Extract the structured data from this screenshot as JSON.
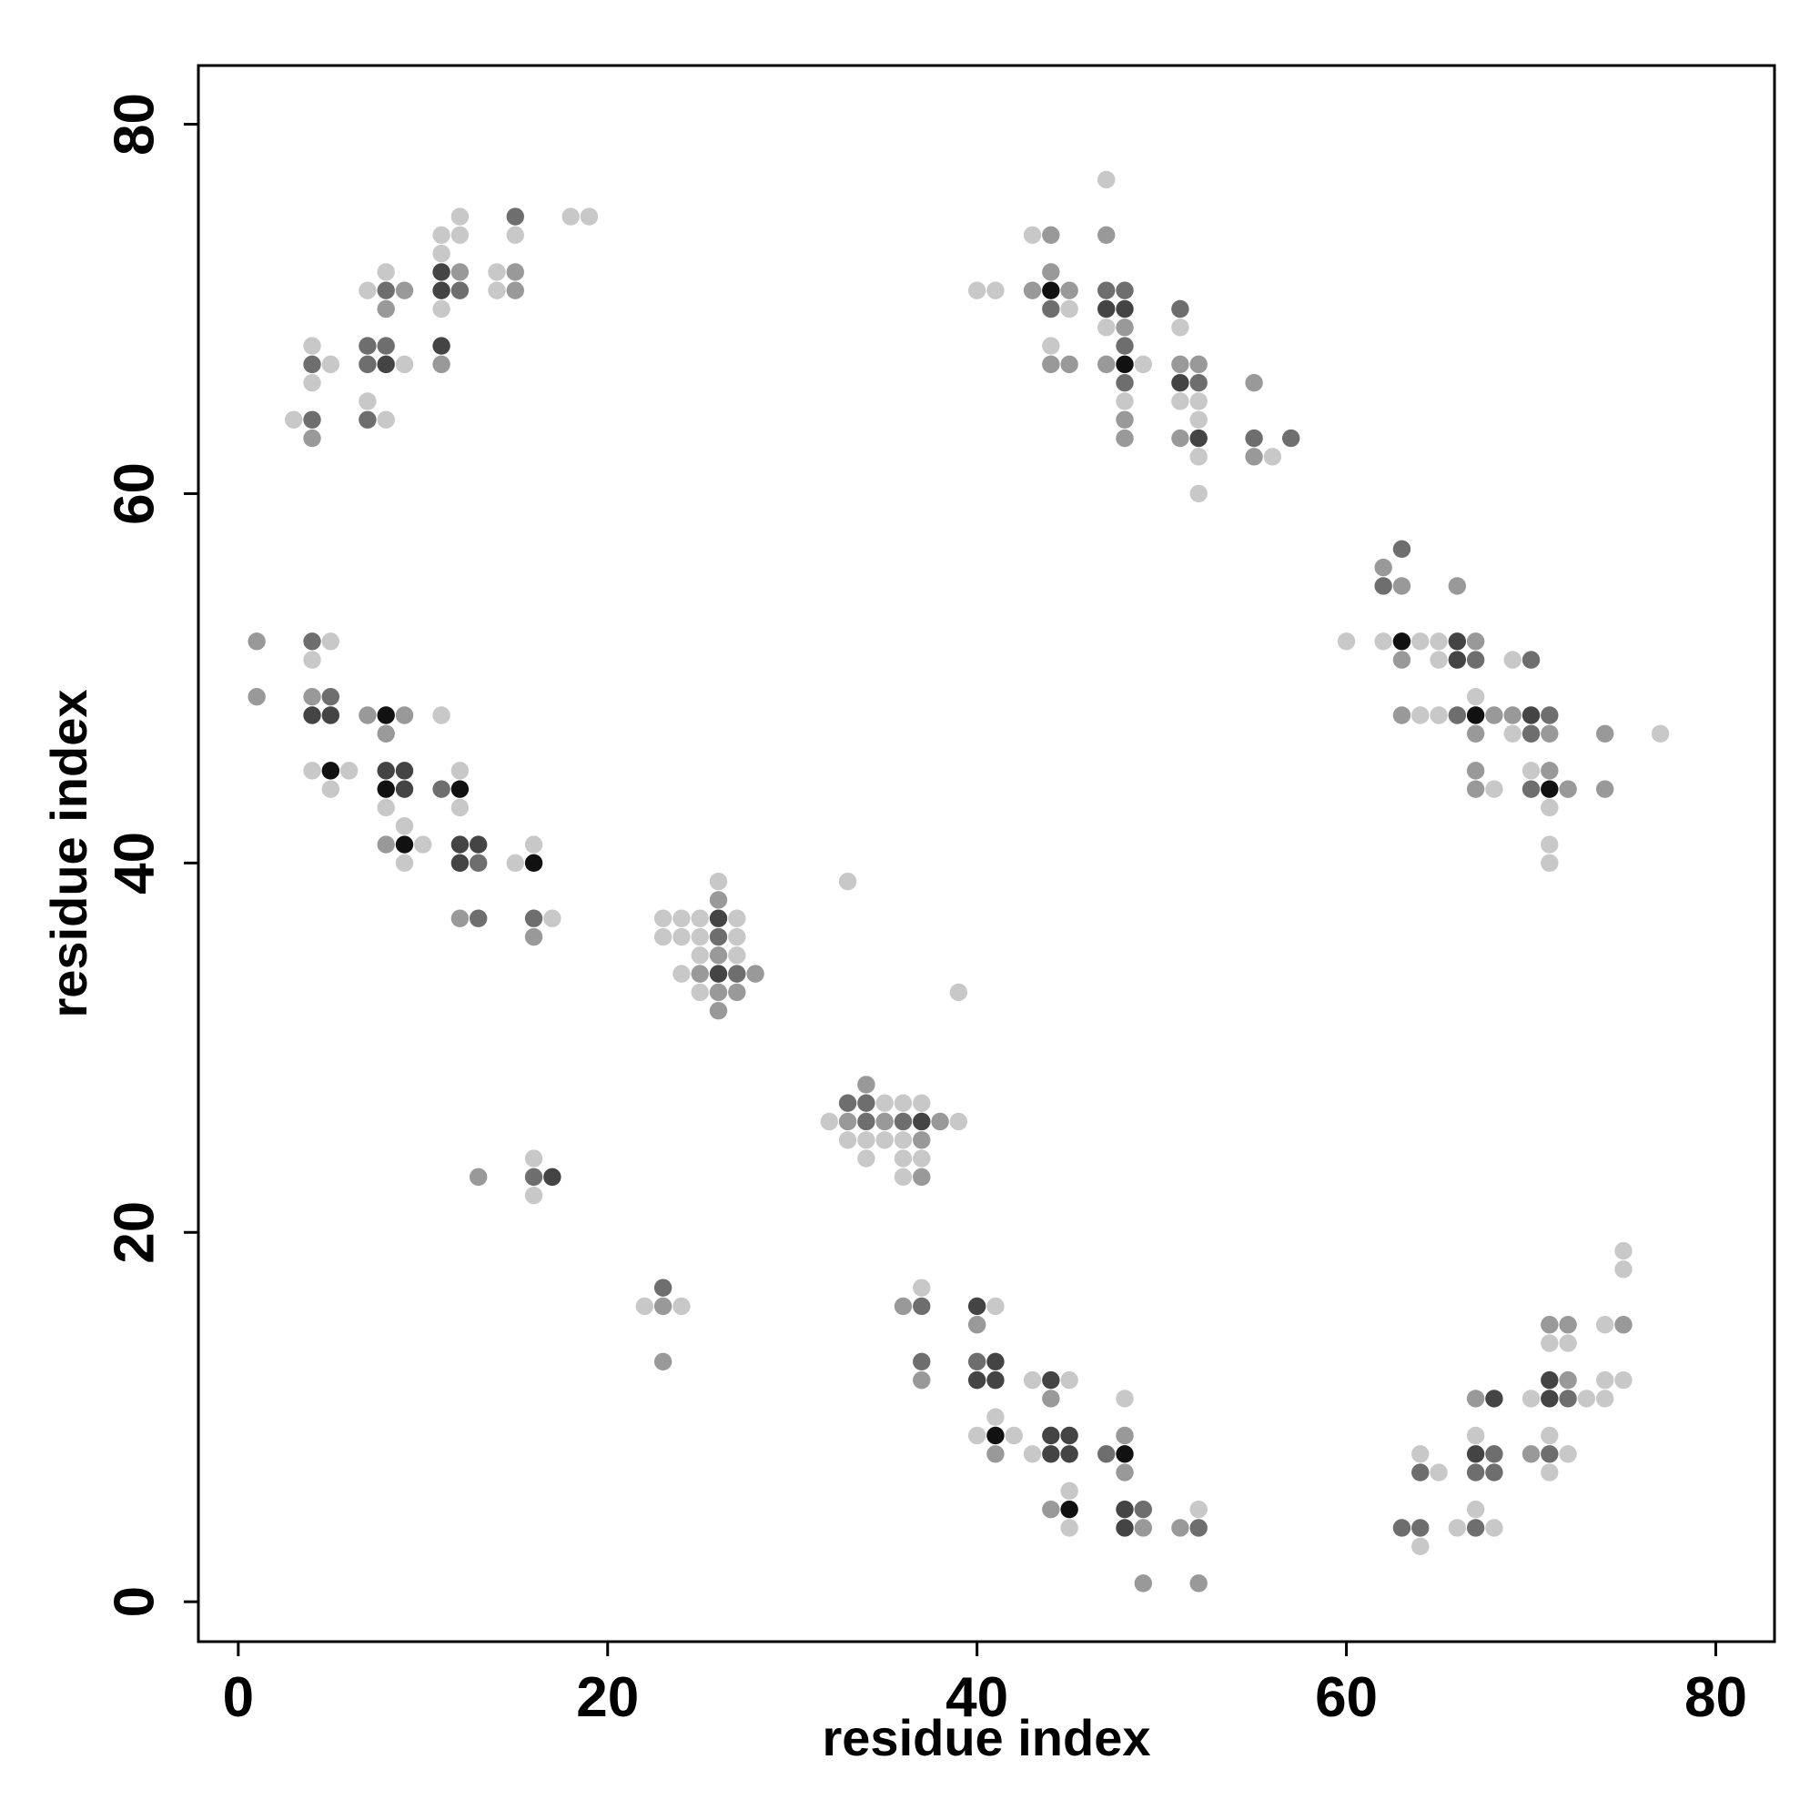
{
  "chart_data": {
    "type": "scatter",
    "xlabel": "residue index",
    "ylabel": "residue index",
    "xlim": [
      -2.16,
      83.18
    ],
    "ylim": [
      -2.16,
      83.18
    ],
    "xticks": [
      0,
      20,
      40,
      60,
      80
    ],
    "yticks": [
      0,
      20,
      40,
      60,
      80
    ],
    "series": [
      {
        "color": "#111111",
        "x": [
          8,
          5,
          8,
          9,
          12,
          16,
          41,
          45,
          48,
          44,
          48,
          63,
          67,
          71
        ],
        "y": [
          48,
          45,
          44,
          41,
          44,
          40,
          9,
          5,
          8,
          71,
          67,
          52,
          48,
          44
        ]
      },
      {
        "color": "#444444",
        "x": [
          8,
          11,
          11,
          11,
          4,
          5,
          8,
          9,
          9,
          12,
          13,
          12,
          26,
          26,
          37,
          17,
          40,
          41,
          40,
          41,
          44,
          44,
          45,
          44,
          45,
          48,
          48,
          68,
          67,
          71,
          71,
          47,
          48,
          51,
          52,
          66,
          66,
          70
        ],
        "y": [
          67,
          68,
          71,
          72,
          48,
          48,
          45,
          45,
          44,
          41,
          41,
          40,
          37,
          34,
          26,
          23,
          16,
          13,
          12,
          12,
          12,
          9,
          9,
          8,
          8,
          5,
          4,
          11,
          8,
          11,
          12,
          70,
          70,
          66,
          63,
          52,
          51,
          48
        ]
      },
      {
        "color": "#6e6e6e",
        "x": [
          4,
          4,
          7,
          7,
          7,
          8,
          8,
          12,
          15,
          4,
          5,
          11,
          13,
          13,
          16,
          26,
          27,
          33,
          34,
          34,
          36,
          16,
          23,
          37,
          37,
          40,
          47,
          49,
          52,
          63,
          64,
          64,
          67,
          68,
          67,
          68,
          72,
          71,
          44,
          47,
          48,
          48,
          48,
          51,
          52,
          55,
          57,
          63,
          62,
          67,
          70,
          66,
          71,
          70,
          70
        ],
        "y": [
          64,
          67,
          64,
          68,
          67,
          68,
          71,
          71,
          75,
          52,
          49,
          44,
          40,
          37,
          37,
          36,
          34,
          27,
          27,
          26,
          26,
          23,
          17,
          16,
          13,
          13,
          8,
          5,
          4,
          4,
          4,
          7,
          4,
          8,
          7,
          7,
          11,
          8,
          70,
          71,
          71,
          68,
          66,
          70,
          66,
          63,
          63,
          57,
          55,
          51,
          51,
          48,
          48,
          47,
          44
        ]
      },
      {
        "color": "#999999",
        "x": [
          4,
          8,
          9,
          11,
          12,
          15,
          15,
          1,
          1,
          4,
          7,
          9,
          8,
          8,
          12,
          16,
          26,
          25,
          28,
          26,
          27,
          26,
          26,
          34,
          33,
          35,
          38,
          37,
          37,
          13,
          23,
          23,
          36,
          37,
          40,
          44,
          41,
          48,
          48,
          44,
          49,
          51,
          49,
          52,
          67,
          72,
          70,
          71,
          72,
          75,
          44,
          47,
          44,
          43,
          45,
          44,
          45,
          48,
          47,
          48,
          48,
          51,
          52,
          51,
          55,
          55,
          62,
          63,
          66,
          63,
          67,
          63,
          68,
          69,
          67,
          71,
          67,
          67,
          71,
          72,
          74,
          74
        ],
        "y": [
          63,
          70,
          71,
          67,
          72,
          72,
          71,
          52,
          49,
          49,
          48,
          48,
          47,
          41,
          37,
          36,
          35,
          34,
          34,
          33,
          33,
          32,
          38,
          28,
          26,
          26,
          26,
          25,
          23,
          23,
          16,
          13,
          16,
          12,
          15,
          11,
          8,
          9,
          7,
          5,
          4,
          4,
          1,
          1,
          11,
          12,
          8,
          15,
          15,
          15,
          74,
          74,
          72,
          71,
          71,
          67,
          67,
          69,
          67,
          64,
          63,
          67,
          67,
          63,
          66,
          62,
          56,
          55,
          55,
          51,
          52,
          48,
          48,
          48,
          47,
          47,
          45,
          44,
          45,
          44,
          47,
          44
        ]
      },
      {
        "color": "#c8c8c8",
        "x": [
          3,
          4,
          4,
          5,
          7,
          8,
          9,
          7,
          8,
          11,
          11,
          11,
          12,
          12,
          14,
          14,
          15,
          18,
          19,
          4,
          5,
          4,
          6,
          5,
          8,
          10,
          9,
          9,
          11,
          12,
          12,
          15,
          16,
          17,
          23,
          24,
          25,
          27,
          23,
          24,
          25,
          27,
          25,
          27,
          24,
          25,
          26,
          33,
          39,
          35,
          36,
          37,
          32,
          39,
          33,
          34,
          35,
          36,
          34,
          36,
          37,
          36,
          16,
          16,
          22,
          24,
          37,
          41,
          43,
          45,
          41,
          40,
          42,
          43,
          48,
          45,
          45,
          52,
          64,
          64,
          65,
          66,
          68,
          67,
          67,
          70,
          73,
          74,
          74,
          72,
          71,
          71,
          71,
          72,
          74,
          75,
          75,
          75,
          40,
          41,
          43,
          47,
          45,
          44,
          47,
          49,
          48,
          51,
          51,
          52,
          52,
          52,
          52,
          56,
          60,
          62,
          64,
          65,
          65,
          69,
          64,
          65,
          67,
          69,
          70,
          68,
          71,
          71,
          71,
          77
        ],
        "y": [
          64,
          68,
          66,
          67,
          65,
          64,
          67,
          71,
          72,
          70,
          73,
          74,
          74,
          75,
          72,
          71,
          74,
          75,
          75,
          51,
          52,
          45,
          45,
          44,
          43,
          41,
          42,
          40,
          48,
          45,
          43,
          40,
          41,
          37,
          37,
          37,
          37,
          37,
          36,
          36,
          36,
          36,
          35,
          35,
          34,
          33,
          39,
          39,
          33,
          27,
          27,
          27,
          26,
          26,
          25,
          25,
          25,
          25,
          24,
          24,
          24,
          23,
          24,
          22,
          16,
          16,
          17,
          16,
          12,
          12,
          10,
          9,
          9,
          8,
          11,
          6,
          4,
          5,
          3,
          8,
          7,
          4,
          4,
          5,
          9,
          11,
          11,
          11,
          12,
          8,
          9,
          7,
          14,
          14,
          15,
          12,
          18,
          19,
          71,
          71,
          74,
          77,
          70,
          68,
          69,
          67,
          65,
          69,
          65,
          65,
          64,
          62,
          60,
          62,
          52,
          52,
          52,
          52,
          51,
          51,
          48,
          48,
          49,
          47,
          45,
          44,
          43,
          41,
          40,
          47
        ]
      }
    ]
  }
}
